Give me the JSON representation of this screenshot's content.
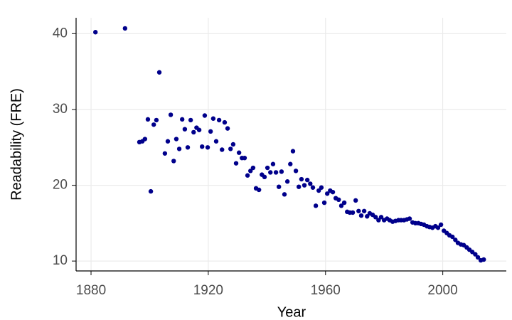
{
  "chart_data": {
    "type": "scatter",
    "x_label": "Year",
    "y_label": "Readability (FRE)",
    "color": "#00008b",
    "grid": true,
    "xlim": [
      1874.9,
      2021.7
    ],
    "xticks": [
      1880,
      1920,
      1960,
      2000
    ],
    "ylim": [
      8.7,
      42.1
    ],
    "yticks": [
      10,
      20,
      30,
      40
    ],
    "x": [
      1881.5,
      1891.6,
      1903.3,
      1896.5,
      1897.5,
      1898.4,
      1899.4,
      1900.4,
      1901.4,
      1902.3,
      1905.2,
      1906.2,
      1907.2,
      1908.2,
      1909.1,
      1910.1,
      1911.1,
      1912.0,
      1913.0,
      1914.0,
      1915.0,
      1916.0,
      1916.9,
      1917.9,
      1918.8,
      1919.8,
      1920.8,
      1921.7,
      1922.7,
      1923.7,
      1924.7,
      1925.6,
      1926.6,
      1927.6,
      1928.5,
      1929.5,
      1930.5,
      1931.5,
      1932.4,
      1933.4,
      1934.4,
      1935.3,
      1936.3,
      1937.3,
      1938.3,
      1939.2,
      1940.2,
      1941.2,
      1942.1,
      1943.1,
      1944.1,
      1945.0,
      1946.0,
      1947.0,
      1948.0,
      1948.9,
      1949.9,
      1950.9,
      1951.8,
      1952.8,
      1953.8,
      1954.8,
      1955.7,
      1956.7,
      1957.7,
      1958.6,
      1959.6,
      1960.6,
      1961.6,
      1962.5,
      1963.5,
      1964.5,
      1965.4,
      1966.4,
      1967.4,
      1968.3,
      1969.3,
      1970.3,
      1971.3,
      1972.2,
      1973.2,
      1974.2,
      1975.1,
      1976.1,
      1977.1,
      1978.1,
      1979.0,
      1980.0,
      1981.0,
      1981.9,
      1982.9,
      1983.9,
      1984.9,
      1985.8,
      1986.8,
      1987.8,
      1988.7,
      1989.7,
      1990.7,
      1991.7,
      1992.6,
      1993.6,
      1994.6,
      1995.5,
      1996.5,
      1997.5,
      1998.4,
      1999.4,
      2000.4,
      2001.4,
      2002.3,
      2003.3,
      2004.3,
      2005.2,
      2006.2,
      2007.2,
      2008.2,
      2009.1,
      2010.1,
      2011.1,
      2012.0,
      2013.0,
      2014.0
    ],
    "values": [
      40.2,
      40.7,
      34.9,
      25.7,
      25.8,
      26.1,
      28.7,
      19.2,
      28.0,
      28.6,
      24.2,
      25.8,
      29.3,
      23.2,
      26.1,
      24.8,
      28.7,
      27.4,
      25.0,
      28.6,
      27.0,
      27.6,
      27.3,
      25.1,
      29.2,
      25.0,
      27.1,
      28.8,
      25.8,
      28.6,
      24.7,
      28.3,
      27.5,
      24.8,
      25.4,
      22.9,
      24.3,
      23.6,
      23.6,
      21.3,
      21.9,
      22.3,
      19.6,
      19.4,
      21.4,
      21.1,
      22.3,
      21.7,
      22.8,
      21.7,
      19.8,
      21.8,
      18.8,
      20.5,
      22.8,
      24.5,
      21.9,
      19.8,
      20.8,
      20.0,
      20.7,
      20.2,
      19.7,
      17.3,
      19.3,
      19.7,
      17.7,
      18.9,
      19.3,
      19.1,
      18.3,
      18.1,
      17.3,
      17.7,
      16.5,
      16.4,
      16.4,
      18.0,
      16.6,
      16.0,
      16.6,
      15.9,
      16.3,
      16.1,
      15.8,
      15.4,
      15.8,
      15.4,
      15.6,
      15.4,
      15.2,
      15.3,
      15.4,
      15.4,
      15.4,
      15.5,
      15.6,
      15.1,
      15.0,
      15.0,
      14.9,
      14.8,
      14.6,
      14.5,
      14.4,
      14.6,
      14.4,
      14.8,
      14.0,
      13.7,
      13.4,
      13.2,
      12.8,
      12.4,
      12.2,
      12.1,
      11.8,
      11.5,
      11.2,
      10.9,
      10.5,
      10.1,
      10.2
    ]
  }
}
